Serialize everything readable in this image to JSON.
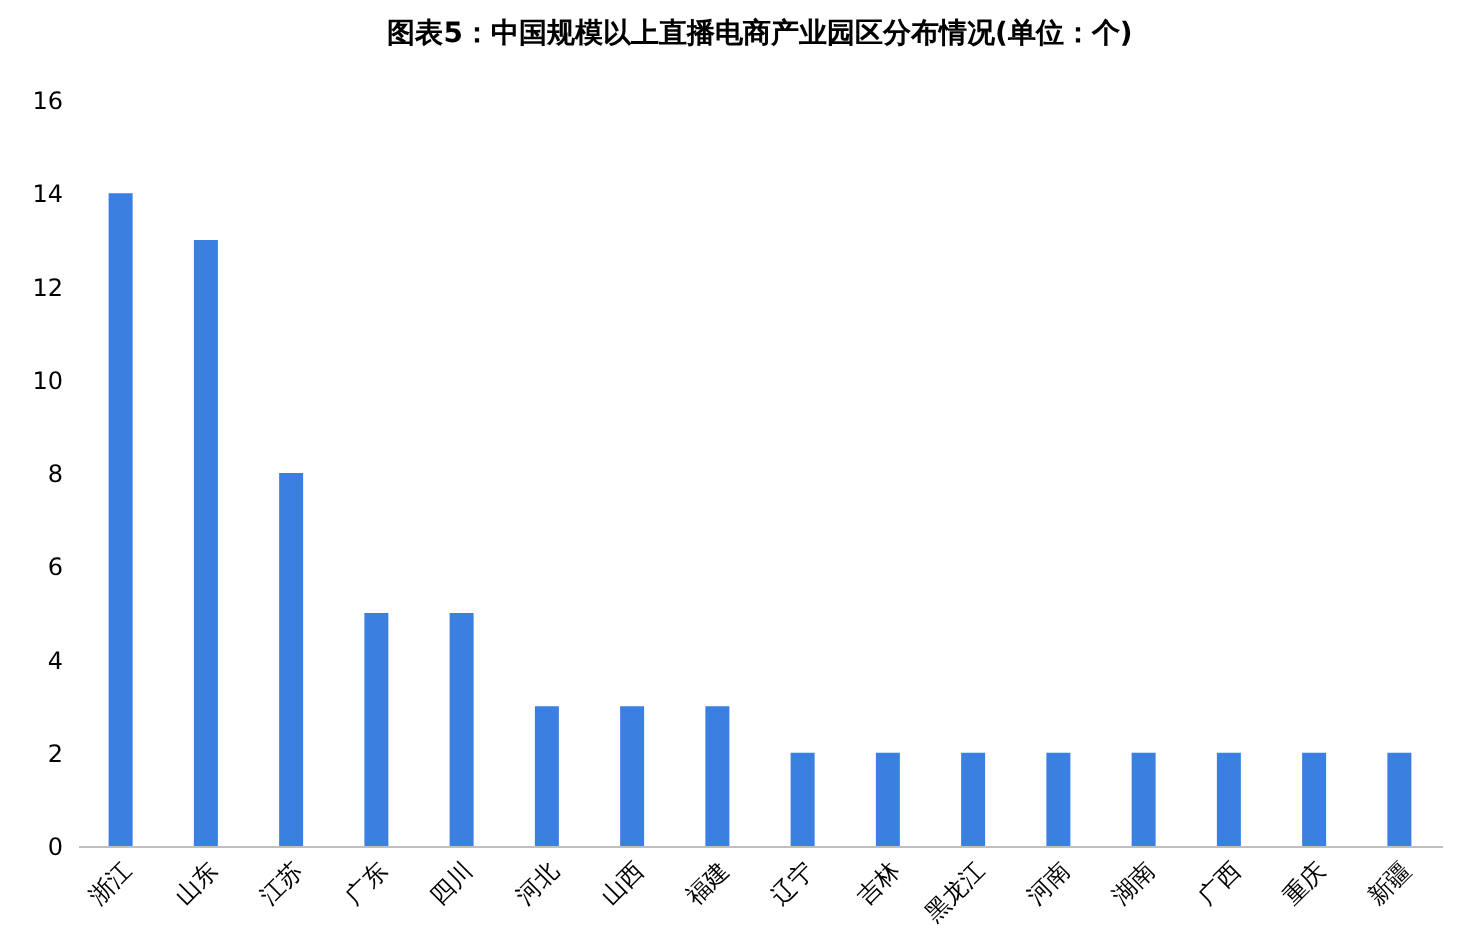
{
  "chart_data": {
    "type": "bar",
    "title": "图表5：中国规模以上直播电商产业园区分布情况(单位：个)",
    "categories": [
      "浙江",
      "山东",
      "江苏",
      "广东",
      "四川",
      "河北",
      "山西",
      "福建",
      "辽宁",
      "吉林",
      "黑龙江",
      "河南",
      "湖南",
      "广西",
      "重庆",
      "新疆"
    ],
    "values": [
      14,
      13,
      8,
      5,
      5,
      3,
      3,
      3,
      2,
      2,
      2,
      2,
      2,
      2,
      2,
      2
    ],
    "color": "#3b7fe0",
    "ylim": [
      0,
      16
    ],
    "yticks": [
      0,
      2,
      4,
      6,
      8,
      10,
      12,
      14,
      16
    ],
    "grid": false
  }
}
